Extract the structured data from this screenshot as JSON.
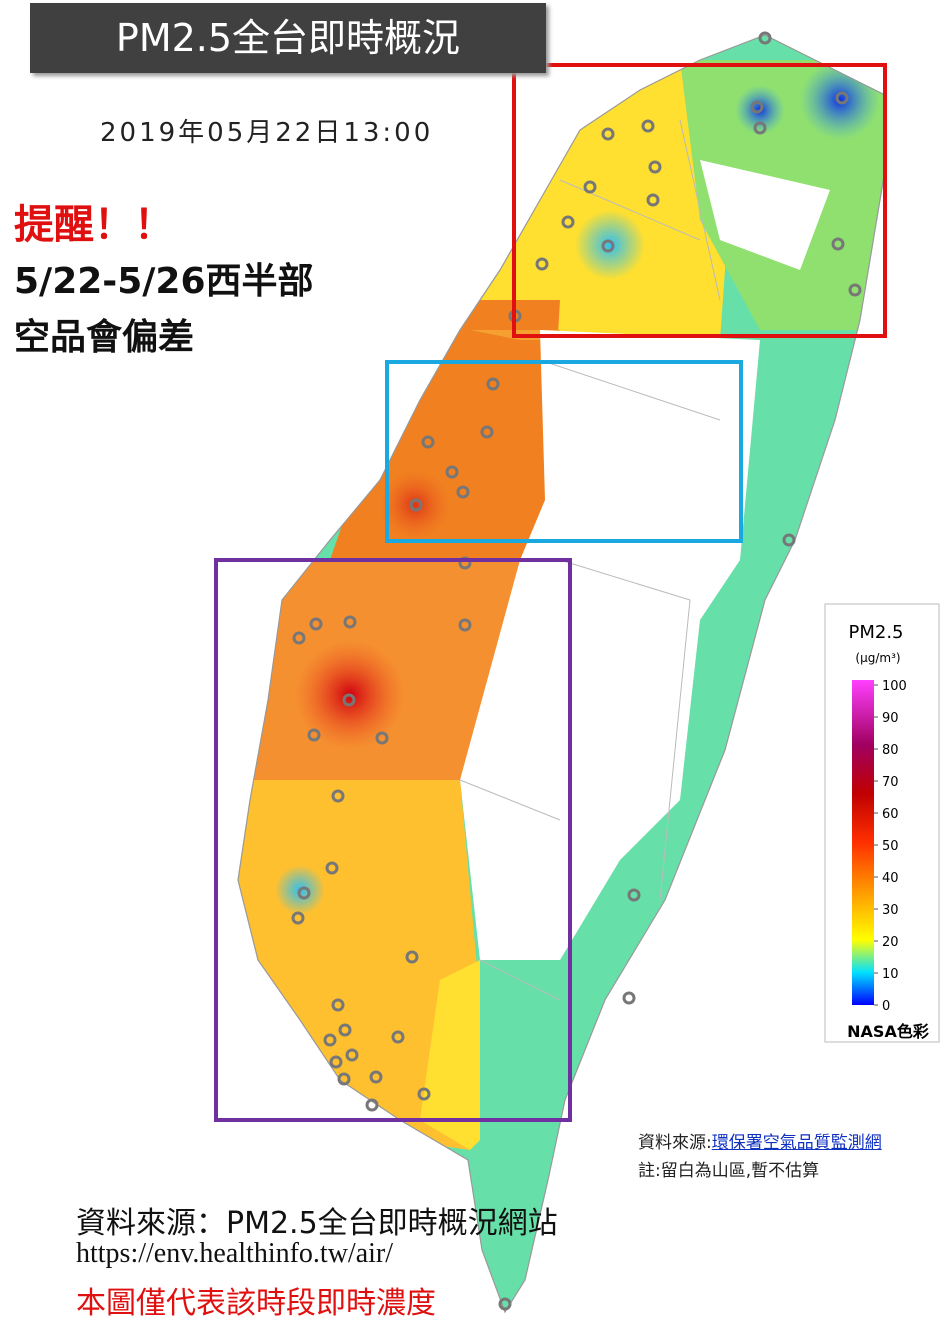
{
  "header": {
    "title": "PM2.5全台即時概況",
    "timestamp": "2019年05月22日13:00"
  },
  "reminder": {
    "heading": "提醒！！",
    "lines": [
      "5/22-5/26西半部",
      "空品會偏差"
    ]
  },
  "legend": {
    "title": "PM2.5",
    "unit": "(μg/m³)",
    "ticks": [
      0,
      10,
      20,
      30,
      40,
      50,
      60,
      70,
      80,
      90,
      100
    ],
    "caption": "NASA色彩"
  },
  "notes": {
    "source_label": "資料來源:",
    "source_link": "環保署空氣品質監測網",
    "remark": "註:留白為山區,暫不估算"
  },
  "footer": {
    "source": "資料來源：PM2.5全台即時概況網站",
    "url": "https://env.healthinfo.tw/air/",
    "disclaimer": "本圖僅代表該時段即時濃度"
  }
}
